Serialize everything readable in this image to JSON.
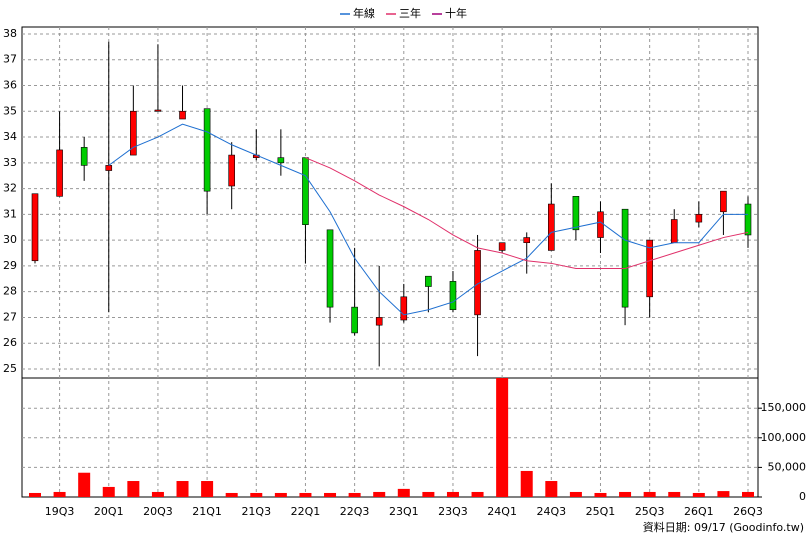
{
  "chart_data": {
    "type": "candlestick",
    "categories": [
      null,
      "19Q3",
      null,
      "20Q1",
      null,
      "20Q3",
      null,
      "21Q1",
      null,
      "21Q3",
      null,
      "22Q1",
      null,
      "22Q3",
      null,
      "23Q1",
      null,
      "23Q3",
      null,
      "24Q1",
      null,
      "24Q3",
      null,
      "25Q1",
      null,
      "25Q3",
      null,
      "26Q1",
      null,
      "26Q3"
    ],
    "open": [
      29.2,
      31.7,
      33.6,
      32.7,
      33.3,
      35.0,
      34.7,
      35.1,
      32.1,
      33.2,
      33.2,
      33.2,
      30.4,
      27.4,
      26.7,
      26.9,
      28.6,
      28.4,
      27.1,
      29.6,
      29.9,
      29.6,
      31.7,
      30.1,
      31.2,
      27.8,
      29.9,
      30.7,
      31.1,
      31.4
    ],
    "high": [
      31.8,
      35.0,
      34.0,
      37.7,
      36.0,
      37.6,
      36.0,
      35.1,
      33.8,
      34.3,
      34.3,
      33.2,
      30.4,
      29.7,
      29.0,
      28.3,
      28.6,
      28.8,
      30.2,
      29.9,
      30.3,
      32.2,
      31.7,
      31.5,
      31.2,
      30.0,
      31.2,
      31.5,
      31.9,
      31.7
    ],
    "low": [
      29.1,
      31.7,
      32.3,
      27.2,
      33.3,
      35.0,
      34.7,
      31.0,
      31.2,
      33.1,
      32.5,
      29.1,
      26.8,
      26.3,
      25.1,
      26.8,
      27.2,
      27.2,
      25.5,
      29.5,
      28.7,
      29.6,
      30.0,
      29.5,
      26.7,
      27.0,
      29.9,
      30.5,
      30.2,
      29.7
    ],
    "close": [
      31.8,
      33.5,
      32.9,
      32.9,
      35.0,
      35.05,
      35.0,
      31.9,
      33.3,
      33.3,
      33.0,
      30.6,
      27.4,
      26.4,
      27.0,
      27.8,
      28.2,
      27.3,
      29.6,
      29.9,
      30.1,
      31.4,
      30.4,
      31.1,
      27.4,
      30.0,
      30.8,
      31.0,
      31.9,
      30.2
    ],
    "up_color": "#ff0000",
    "down_color": "#00cc00",
    "series": [
      {
        "name": "年線",
        "color": "#1e6fd0",
        "values": [
          null,
          null,
          null,
          32.9,
          33.6,
          34.0,
          34.5,
          34.2,
          33.7,
          33.3,
          32.9,
          32.5,
          31.1,
          29.3,
          28.0,
          27.1,
          27.3,
          27.6,
          28.3,
          28.8,
          29.3,
          30.3,
          30.5,
          30.7,
          30.0,
          29.7,
          29.9,
          29.9,
          31.0,
          31.0
        ]
      },
      {
        "name": "三年",
        "color": "#e0306a",
        "values": [
          null,
          null,
          null,
          null,
          null,
          null,
          null,
          null,
          null,
          null,
          null,
          33.2,
          32.8,
          32.3,
          31.75,
          31.3,
          30.8,
          30.2,
          29.7,
          29.5,
          29.2,
          29.1,
          28.9,
          28.9,
          28.9,
          29.2,
          29.5,
          29.8,
          30.1,
          30.3
        ]
      },
      {
        "name": "十年",
        "color": "#a0007a",
        "values": [
          null,
          null,
          null,
          null,
          null,
          null,
          null,
          null,
          null,
          null,
          null,
          null,
          null,
          null,
          null,
          null,
          null,
          null,
          null,
          null,
          null,
          null,
          null,
          null,
          null,
          null,
          null,
          null,
          null,
          null
        ]
      }
    ],
    "ylim": [
      24.65,
      38.27
    ],
    "yticks": [
      25,
      26,
      27,
      28,
      29,
      30,
      31,
      32,
      33,
      34,
      35,
      36,
      37,
      38
    ],
    "volume": {
      "color": "#ff0000",
      "values": [
        6800,
        8500,
        41000,
        17000,
        27000,
        8500,
        27000,
        27000,
        6800,
        6800,
        6800,
        6800,
        6800,
        6800,
        8500,
        13700,
        8500,
        8500,
        8500,
        201000,
        44000,
        27000,
        8500,
        6800,
        8500,
        8500,
        8500,
        6800,
        10000,
        8500
      ]
    },
    "y2lim": [
      0,
      201000
    ],
    "y2ticks": [
      0,
      {
        "value": 50000,
        "label": "50,000"
      },
      {
        "value": 100000,
        "label": "100,000"
      },
      {
        "value": 150000,
        "label": "150,000"
      }
    ],
    "grid": true,
    "footer": "資料日期: 09/17 (Goodinfo.tw)"
  }
}
